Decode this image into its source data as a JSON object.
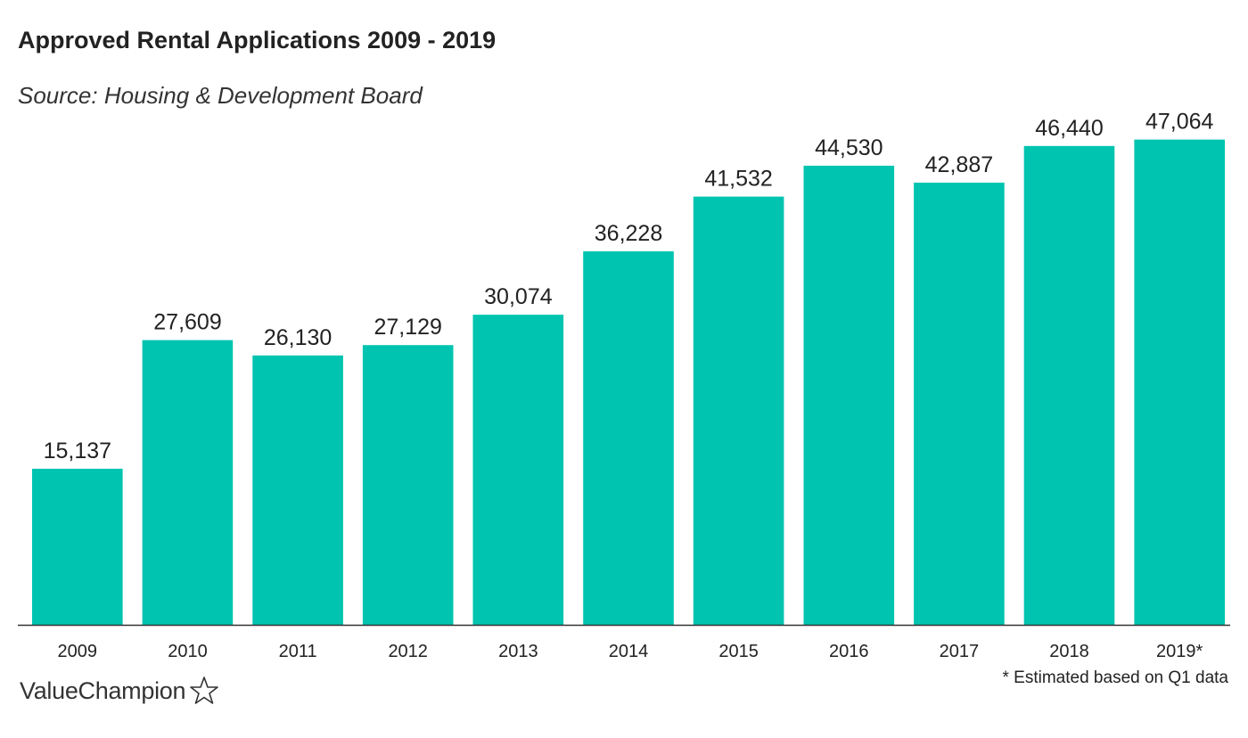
{
  "title": "Approved Rental Applications 2009 - 2019",
  "subtitle": "Source: Housing & Development Board",
  "footnote": "* Estimated based on Q1 data",
  "brand": {
    "name": "ValueChampion",
    "icon": "star-outline-icon"
  },
  "colors": {
    "bar": "#00c4b0",
    "axis": "#333333",
    "text": "#222222"
  },
  "chart_data": {
    "type": "bar",
    "title": "Approved Rental Applications 2009 - 2019",
    "subtitle": "Source: Housing & Development Board",
    "xlabel": "",
    "ylabel": "",
    "categories": [
      "2009",
      "2010",
      "2011",
      "2012",
      "2013",
      "2014",
      "2015",
      "2016",
      "2017",
      "2018",
      "2019*"
    ],
    "values": [
      15137,
      27609,
      26130,
      27129,
      30074,
      36228,
      41532,
      44530,
      42887,
      46440,
      47064
    ],
    "value_labels": [
      "15,137",
      "27,609",
      "26,130",
      "27,129",
      "30,074",
      "36,228",
      "41,532",
      "44,530",
      "42,887",
      "46,440",
      "47,064"
    ],
    "ylim": [
      0,
      48500
    ],
    "grid": false,
    "legend": "none"
  }
}
